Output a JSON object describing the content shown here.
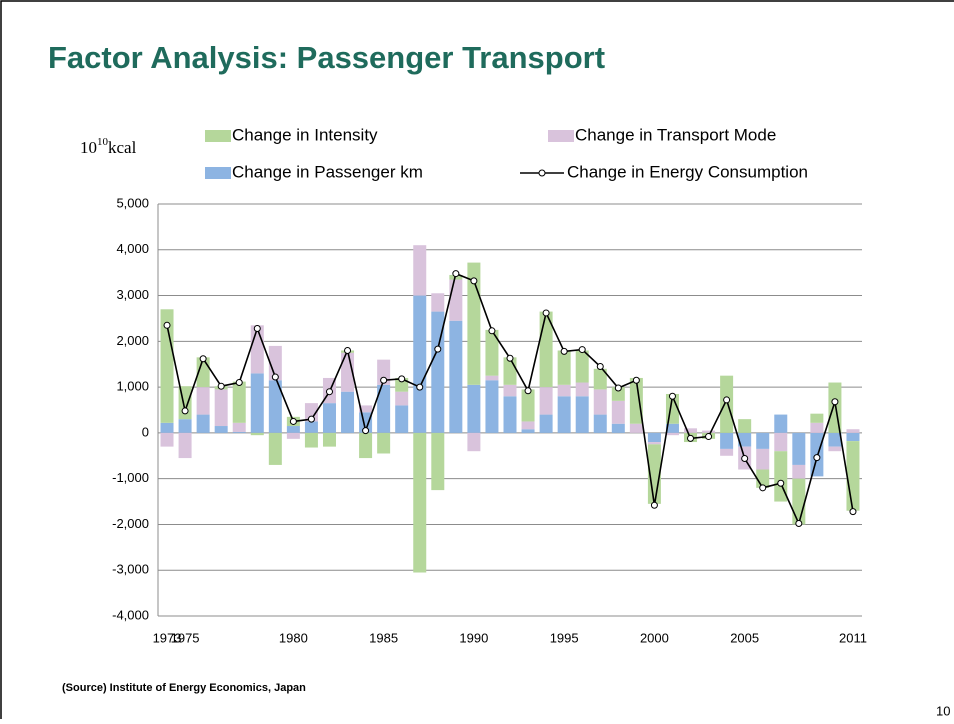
{
  "title": "Factor Analysis: Passenger Transport",
  "source": "(Source) Institute of Energy Economics, Japan",
  "page_number": "10",
  "chart_data": {
    "type": "bar",
    "stacked": true,
    "unit_label": {
      "base": "10",
      "exponent": "10",
      "suffix": "kcal"
    },
    "categories": [
      "1973",
      "1975",
      null,
      null,
      null,
      null,
      null,
      "1980",
      null,
      null,
      null,
      null,
      "1985",
      null,
      null,
      null,
      null,
      "1990",
      null,
      null,
      null,
      null,
      "1995",
      null,
      null,
      null,
      null,
      "2000",
      null,
      null,
      null,
      null,
      "2005",
      null,
      null,
      null,
      null,
      null,
      "2011"
    ],
    "category_positions": [
      0,
      2,
      7,
      12,
      17,
      22,
      27,
      32,
      38
    ],
    "ylim": [
      -4000,
      5000
    ],
    "yticks": [
      {
        "value": 5000,
        "label": "5,000"
      },
      {
        "value": 4000,
        "label": "4,000"
      },
      {
        "value": 3000,
        "label": "3,000"
      },
      {
        "value": 2000,
        "label": "2,000"
      },
      {
        "value": 1000,
        "label": "1,000"
      },
      0,
      {
        "value": -1000,
        "label": "-1,000"
      },
      {
        "value": -2000,
        "label": "-2,000"
      },
      {
        "value": -3000,
        "label": "-3,000"
      },
      {
        "value": -4000,
        "label": "-4,000"
      }
    ],
    "grid": true,
    "series": [
      {
        "name": "Change in Passenger km",
        "color": "#8db4e2",
        "type": "bar",
        "values": [
          220,
          300,
          400,
          150,
          20,
          1300,
          1150,
          150,
          250,
          650,
          900,
          450,
          1050,
          600,
          3000,
          2650,
          2450,
          1050,
          1150,
          800,
          80,
          400,
          800,
          800,
          400,
          200,
          0,
          -200,
          200,
          0,
          0,
          -350,
          -300,
          -350,
          400,
          -700,
          -950,
          -300,
          -180
        ]
      },
      {
        "name": "Change in Transport Mode",
        "color": "#d9c3dc",
        "type": "bar",
        "values": [
          -300,
          -550,
          600,
          800,
          200,
          1050,
          750,
          -130,
          400,
          550,
          850,
          150,
          550,
          300,
          1100,
          400,
          900,
          -400,
          100,
          250,
          170,
          600,
          250,
          300,
          550,
          500,
          200,
          -50,
          -50,
          100,
          50,
          -150,
          -500,
          -450,
          -400,
          -300,
          220,
          -100,
          80
        ]
      },
      {
        "name": "Change in Intensity",
        "color": "#b5d79b",
        "type": "bar",
        "values": [
          2480,
          720,
          650,
          70,
          900,
          -50,
          -700,
          200,
          -320,
          -300,
          50,
          -550,
          -450,
          300,
          -3050,
          -1250,
          100,
          2670,
          1000,
          600,
          700,
          1650,
          750,
          700,
          450,
          300,
          1000,
          -1300,
          650,
          -200,
          -130,
          1250,
          300,
          -400,
          -1100,
          -1000,
          200,
          1100,
          -1520
        ]
      },
      {
        "name": "Change in Energy Consumption",
        "color": "#000000",
        "type": "line",
        "values": [
          2350,
          480,
          1620,
          1020,
          1100,
          2280,
          1220,
          250,
          300,
          900,
          1800,
          50,
          1150,
          1180,
          1000,
          1830,
          3480,
          3320,
          2230,
          1630,
          920,
          2620,
          1780,
          1820,
          1450,
          980,
          1150,
          -1580,
          800,
          -120,
          -80,
          720,
          -560,
          -1200,
          -1100,
          -1980,
          -540,
          680,
          -1720
        ]
      }
    ]
  }
}
